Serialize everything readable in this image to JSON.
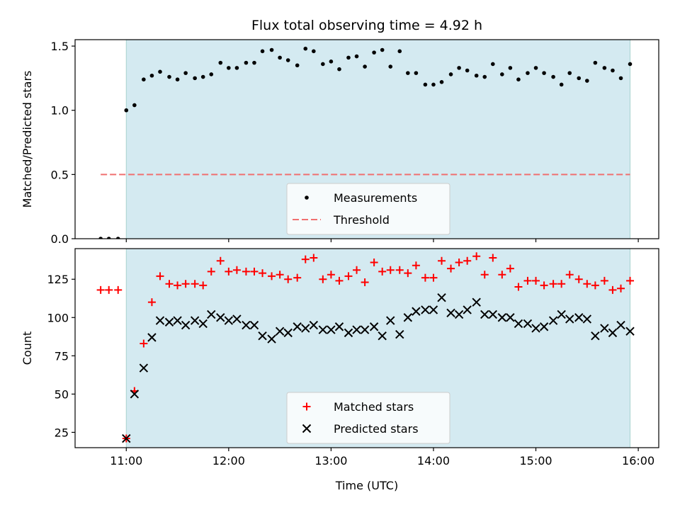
{
  "chart_data": [
    {
      "type": "scatter",
      "title": "Flux total observing time = 4.92 h",
      "xlabel": "",
      "ylabel": "Matched/Predicted stars",
      "xlim": [
        10.5,
        16.2
      ],
      "ylim": [
        0,
        1.55
      ],
      "yticks": [
        0.0,
        0.5,
        1.0,
        1.5
      ],
      "ytick_labels": [
        "0.0",
        "0.5",
        "1.0",
        "1.5"
      ],
      "xticks": [
        11,
        12,
        13,
        14,
        15,
        16
      ],
      "xtick_labels": [
        "",
        "",
        "",
        "",
        "",
        ""
      ],
      "shaded_region": {
        "x_start": 11.0,
        "x_end": 15.92,
        "color": "#d4eaf1"
      },
      "legend_position": "lower-center",
      "series": [
        {
          "name": "Measurements",
          "kind": "dots",
          "color": "#000000",
          "x": [
            10.75,
            10.83,
            10.92,
            11.0,
            11.08,
            11.17,
            11.25,
            11.33,
            11.42,
            11.5,
            11.58,
            11.67,
            11.75,
            11.83,
            11.92,
            12.0,
            12.08,
            12.17,
            12.25,
            12.33,
            12.42,
            12.5,
            12.58,
            12.67,
            12.75,
            12.83,
            12.92,
            13.0,
            13.08,
            13.17,
            13.25,
            13.33,
            13.42,
            13.5,
            13.58,
            13.67,
            13.75,
            13.83,
            13.92,
            14.0,
            14.08,
            14.17,
            14.25,
            14.33,
            14.42,
            14.5,
            14.58,
            14.67,
            14.75,
            14.83,
            14.92,
            15.0,
            15.08,
            15.17,
            15.25,
            15.33,
            15.42,
            15.5,
            15.58,
            15.67,
            15.75,
            15.83,
            15.92
          ],
          "y": [
            0.0,
            0.0,
            0.0,
            1.0,
            1.04,
            1.24,
            1.27,
            1.3,
            1.26,
            1.24,
            1.29,
            1.25,
            1.26,
            1.28,
            1.37,
            1.33,
            1.33,
            1.37,
            1.37,
            1.46,
            1.47,
            1.41,
            1.39,
            1.35,
            1.48,
            1.46,
            1.36,
            1.38,
            1.32,
            1.41,
            1.42,
            1.34,
            1.45,
            1.47,
            1.34,
            1.46,
            1.29,
            1.29,
            1.2,
            1.2,
            1.22,
            1.28,
            1.33,
            1.31,
            1.27,
            1.26,
            1.36,
            1.28,
            1.33,
            1.24,
            1.29,
            1.33,
            1.29,
            1.26,
            1.2,
            1.29,
            1.25,
            1.23,
            1.37,
            1.33,
            1.31,
            1.25,
            1.36
          ]
        },
        {
          "name": "Threshold",
          "kind": "dashed-line",
          "color": "#f07070",
          "x": [
            10.75,
            15.92
          ],
          "y": [
            0.5,
            0.5
          ]
        }
      ]
    },
    {
      "type": "scatter",
      "title": "",
      "xlabel": "Time (UTC)",
      "ylabel": "Count",
      "xlim": [
        10.5,
        16.2
      ],
      "ylim": [
        15,
        145
      ],
      "yticks": [
        25,
        50,
        75,
        100,
        125
      ],
      "ytick_labels": [
        "25",
        "50",
        "75",
        "100",
        "125"
      ],
      "xticks": [
        11,
        12,
        13,
        14,
        15,
        16
      ],
      "xtick_labels": [
        "11:00",
        "12:00",
        "13:00",
        "14:00",
        "15:00",
        "16:00"
      ],
      "shaded_region": {
        "x_start": 11.0,
        "x_end": 15.92,
        "color": "#d4eaf1"
      },
      "legend_position": "lower-center",
      "series": [
        {
          "name": "Matched stars",
          "kind": "plus",
          "color": "#ff0000",
          "x": [
            10.75,
            10.83,
            10.92,
            11.0,
            11.08,
            11.17,
            11.25,
            11.33,
            11.42,
            11.5,
            11.58,
            11.67,
            11.75,
            11.83,
            11.92,
            12.0,
            12.08,
            12.17,
            12.25,
            12.33,
            12.42,
            12.5,
            12.58,
            12.67,
            12.75,
            12.83,
            12.92,
            13.0,
            13.08,
            13.17,
            13.25,
            13.33,
            13.42,
            13.5,
            13.58,
            13.67,
            13.75,
            13.83,
            13.92,
            14.0,
            14.08,
            14.17,
            14.25,
            14.33,
            14.42,
            14.5,
            14.58,
            14.67,
            14.75,
            14.83,
            14.92,
            15.0,
            15.08,
            15.17,
            15.25,
            15.33,
            15.42,
            15.5,
            15.58,
            15.67,
            15.75,
            15.83,
            15.92
          ],
          "y": [
            118,
            118,
            118,
            21,
            52,
            83,
            110,
            127,
            122,
            121,
            122,
            122,
            121,
            130,
            137,
            130,
            131,
            130,
            130,
            129,
            127,
            128,
            125,
            126,
            138,
            139,
            125,
            128,
            124,
            127,
            131,
            123,
            136,
            130,
            131,
            131,
            129,
            134,
            126,
            126,
            137,
            132,
            136,
            137,
            140,
            128,
            139,
            128,
            132,
            120,
            124,
            124,
            121,
            122,
            122,
            128,
            125,
            122,
            121,
            124,
            118,
            119,
            124
          ]
        },
        {
          "name": "Predicted stars",
          "kind": "x",
          "color": "#000000",
          "x": [
            11.0,
            11.08,
            11.17,
            11.25,
            11.33,
            11.42,
            11.5,
            11.58,
            11.67,
            11.75,
            11.83,
            11.92,
            12.0,
            12.08,
            12.17,
            12.25,
            12.33,
            12.42,
            12.5,
            12.58,
            12.67,
            12.75,
            12.83,
            12.92,
            13.0,
            13.08,
            13.17,
            13.25,
            13.33,
            13.42,
            13.5,
            13.58,
            13.67,
            13.75,
            13.83,
            13.92,
            14.0,
            14.08,
            14.17,
            14.25,
            14.33,
            14.42,
            14.5,
            14.58,
            14.67,
            14.75,
            14.83,
            14.92,
            15.0,
            15.08,
            15.17,
            15.25,
            15.33,
            15.42,
            15.5,
            15.58,
            15.67,
            15.75,
            15.83,
            15.92
          ],
          "y": [
            21,
            50,
            67,
            87,
            98,
            97,
            98,
            95,
            98,
            96,
            102,
            100,
            98,
            99,
            95,
            95,
            88,
            86,
            91,
            90,
            94,
            93,
            95,
            92,
            92,
            94,
            90,
            92,
            92,
            94,
            88,
            98,
            89,
            100,
            104,
            105,
            105,
            113,
            103,
            102,
            105,
            110,
            102,
            102,
            100,
            100,
            96,
            96,
            93,
            94,
            98,
            102,
            99,
            100,
            99,
            88,
            93,
            90,
            95,
            91
          ]
        }
      ]
    }
  ]
}
